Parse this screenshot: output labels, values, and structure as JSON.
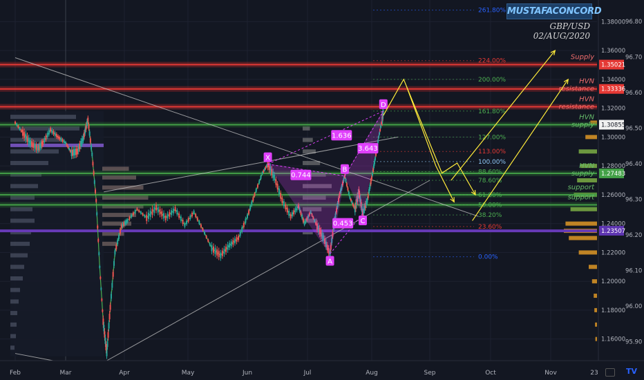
{
  "header": {
    "brand": "MUSTAFACONCORD",
    "symbol": "GBP/USD",
    "date": "02/AUG/2020"
  },
  "colors": {
    "background": "#131722",
    "price_line": "#4caf50",
    "candle_up": "#26a69a",
    "candle_down": "#ef5350",
    "pattern": "#e040fb",
    "projection": "#ffeb3b",
    "supply_band": "#c62828",
    "support_band": "#2e7d32",
    "pivot_line": "#673ab7"
  },
  "chart_data": {
    "type": "line",
    "symbol": "GBP/USD",
    "x_ticks": [
      "Feb",
      "Mar",
      "Apr",
      "May",
      "Jun",
      "Jul",
      "Aug",
      "Sep",
      "Oct",
      "Nov",
      "23"
    ],
    "y_axis_right": {
      "ticks": [
        "1.38000",
        "1.36000",
        "1.34000",
        "1.32000",
        "1.30000",
        "1.28000",
        "1.26000",
        "1.24000",
        "1.22000",
        "1.20000",
        "1.18000",
        "1.16000"
      ],
      "range": [
        1.145,
        1.395
      ]
    },
    "y_axis_secondary": {
      "ticks": [
        "96.80",
        "96.70",
        "96.60",
        "96.50",
        "96.40",
        "96.30",
        "96.20",
        "96.10",
        "96.00",
        "95.90"
      ]
    },
    "price_badges": [
      {
        "value": "1.35021",
        "price": 1.35021,
        "color": "#e53935"
      },
      {
        "value": "1.33336",
        "price": 1.33336,
        "color": "#e53935"
      },
      {
        "value": "1.30855",
        "price": 1.30855,
        "color": "#f0f0f0"
      },
      {
        "value": "1.27483",
        "price": 1.27483,
        "color": "#43a047"
      },
      {
        "value": "1.23507",
        "price": 1.23507,
        "color": "#5e35b1"
      }
    ],
    "zones": [
      {
        "label": "Supply",
        "price": 1.35021,
        "type": "supply"
      },
      {
        "label": "HVN resistance",
        "price": 1.33336,
        "type": "supply"
      },
      {
        "label": "HVN resistance",
        "price": 1.321,
        "type": "supply"
      },
      {
        "label": "HVN supply",
        "price": 1.30855,
        "type": "support"
      },
      {
        "label": "HVN supply",
        "price": 1.27483,
        "type": "support"
      },
      {
        "label": "support",
        "price": 1.26,
        "type": "support"
      },
      {
        "label": "support",
        "price": 1.253,
        "type": "support"
      }
    ],
    "fib_levels": [
      {
        "label": "261.80%",
        "price": 1.388
      },
      {
        "label": "224.00%",
        "price": 1.353
      },
      {
        "label": "200.00%",
        "price": 1.34
      },
      {
        "label": "161.80%",
        "price": 1.318
      },
      {
        "label": "127.00%",
        "price": 1.3
      },
      {
        "label": "113.00%",
        "price": 1.29
      },
      {
        "label": "100.00%",
        "price": 1.283
      },
      {
        "label": "88.60%",
        "price": 1.276
      },
      {
        "label": "78.60%",
        "price": 1.27
      },
      {
        "label": "61.80%",
        "price": 1.26
      },
      {
        "label": "50.00%",
        "price": 1.253
      },
      {
        "label": "38.20%",
        "price": 1.246
      },
      {
        "label": "23.60%",
        "price": 1.238
      },
      {
        "label": "0.00%",
        "price": 1.217
      }
    ],
    "harmonic_pattern": {
      "points": [
        {
          "label": "X",
          "month": 4.34,
          "price": 1.2812
        },
        {
          "label": "A",
          "month": 5.35,
          "price": 1.219
        },
        {
          "label": "B",
          "month": 5.58,
          "price": 1.273
        },
        {
          "label": "C",
          "month": 5.86,
          "price": 1.247
        },
        {
          "label": "D",
          "month": 6.2,
          "price": 1.318
        }
      ],
      "ratios": [
        {
          "label": "1.636",
          "month": 5.53,
          "price": 1.301
        },
        {
          "label": "3.643",
          "month": 5.94,
          "price": 1.292
        },
        {
          "label": "0.744",
          "month": 4.89,
          "price": 1.2735
        },
        {
          "label": "0.453",
          "month": 5.55,
          "price": 1.24
        }
      ]
    },
    "price_series": [
      {
        "month": 0.0,
        "price": 1.31
      },
      {
        "month": 0.15,
        "price": 1.303
      },
      {
        "month": 0.3,
        "price": 1.296
      },
      {
        "month": 0.45,
        "price": 1.292
      },
      {
        "month": 0.55,
        "price": 1.296
      },
      {
        "month": 0.7,
        "price": 1.305
      },
      {
        "month": 0.85,
        "price": 1.3
      },
      {
        "month": 1.0,
        "price": 1.296
      },
      {
        "month": 1.1,
        "price": 1.289
      },
      {
        "month": 1.2,
        "price": 1.29
      },
      {
        "month": 1.3,
        "price": 1.299
      },
      {
        "month": 1.38,
        "price": 1.312
      },
      {
        "month": 1.45,
        "price": 1.288
      },
      {
        "month": 1.52,
        "price": 1.256
      },
      {
        "month": 1.58,
        "price": 1.21
      },
      {
        "month": 1.64,
        "price": 1.172
      },
      {
        "month": 1.7,
        "price": 1.15
      },
      {
        "month": 1.76,
        "price": 1.182
      },
      {
        "month": 1.84,
        "price": 1.22
      },
      {
        "month": 1.95,
        "price": 1.238
      },
      {
        "month": 2.05,
        "price": 1.242
      },
      {
        "month": 2.2,
        "price": 1.25
      },
      {
        "month": 2.35,
        "price": 1.244
      },
      {
        "month": 2.5,
        "price": 1.251
      },
      {
        "month": 2.65,
        "price": 1.244
      },
      {
        "month": 2.8,
        "price": 1.25
      },
      {
        "month": 2.95,
        "price": 1.239
      },
      {
        "month": 3.1,
        "price": 1.248
      },
      {
        "month": 3.25,
        "price": 1.236
      },
      {
        "month": 3.4,
        "price": 1.223
      },
      {
        "month": 3.55,
        "price": 1.218
      },
      {
        "month": 3.7,
        "price": 1.225
      },
      {
        "month": 3.85,
        "price": 1.23
      },
      {
        "month": 4.0,
        "price": 1.245
      },
      {
        "month": 4.12,
        "price": 1.26
      },
      {
        "month": 4.25,
        "price": 1.275
      },
      {
        "month": 4.34,
        "price": 1.2812
      },
      {
        "month": 4.45,
        "price": 1.272
      },
      {
        "month": 4.58,
        "price": 1.256
      },
      {
        "month": 4.72,
        "price": 1.245
      },
      {
        "month": 4.85,
        "price": 1.252
      },
      {
        "month": 4.95,
        "price": 1.24
      },
      {
        "month": 5.05,
        "price": 1.248
      },
      {
        "month": 5.15,
        "price": 1.238
      },
      {
        "month": 5.25,
        "price": 1.23
      },
      {
        "month": 5.35,
        "price": 1.219
      },
      {
        "month": 5.42,
        "price": 1.242
      },
      {
        "month": 5.5,
        "price": 1.26
      },
      {
        "month": 5.58,
        "price": 1.273
      },
      {
        "month": 5.66,
        "price": 1.258
      },
      {
        "month": 5.74,
        "price": 1.25
      },
      {
        "month": 5.8,
        "price": 1.262
      },
      {
        "month": 5.86,
        "price": 1.247
      },
      {
        "month": 5.93,
        "price": 1.256
      },
      {
        "month": 6.0,
        "price": 1.272
      },
      {
        "month": 6.06,
        "price": 1.285
      },
      {
        "month": 6.12,
        "price": 1.3
      },
      {
        "month": 6.18,
        "price": 1.312
      },
      {
        "month": 6.2,
        "price": 1.318
      }
    ],
    "projections": [
      [
        {
          "month": 6.2,
          "price": 1.315
        },
        {
          "month": 6.55,
          "price": 1.34
        },
        {
          "month": 7.2,
          "price": 1.275
        },
        {
          "month": 7.45,
          "price": 1.282
        },
        {
          "month": 7.75,
          "price": 1.26
        }
      ],
      [
        {
          "month": 6.6,
          "price": 1.335
        },
        {
          "month": 7.1,
          "price": 1.28
        },
        {
          "month": 7.4,
          "price": 1.255
        }
      ],
      [
        {
          "month": 7.35,
          "price": 1.27
        },
        {
          "month": 9.1,
          "price": 1.36
        }
      ],
      [
        {
          "month": 7.7,
          "price": 1.242
        },
        {
          "month": 9.4,
          "price": 1.34
        }
      ]
    ],
    "trendlines": [
      [
        {
          "month": 0.0,
          "price": 1.355
        },
        {
          "month": 7.8,
          "price": 1.245
        }
      ],
      [
        {
          "month": 1.7,
          "price": 1.145
        },
        {
          "month": 7.0,
          "price": 1.27
        }
      ],
      [
        {
          "month": 1.65,
          "price": 1.262
        },
        {
          "month": 6.45,
          "price": 1.3
        }
      ],
      [
        {
          "month": 0.0,
          "price": 1.15
        },
        {
          "month": 0.75,
          "price": 1.145
        }
      ]
    ],
    "volume_profile_left": [
      {
        "price": 1.314,
        "size": 0.95
      },
      {
        "price": 1.306,
        "size": 1.0
      },
      {
        "price": 1.298,
        "size": 0.75
      },
      {
        "price": 1.29,
        "size": 0.7
      },
      {
        "price": 1.282,
        "size": 0.55
      },
      {
        "price": 1.274,
        "size": 0.45
      },
      {
        "price": 1.266,
        "size": 0.4
      },
      {
        "price": 1.258,
        "size": 0.35
      },
      {
        "price": 1.25,
        "size": 0.32
      },
      {
        "price": 1.242,
        "size": 0.35
      },
      {
        "price": 1.234,
        "size": 0.3
      },
      {
        "price": 1.226,
        "size": 0.28
      },
      {
        "price": 1.218,
        "size": 0.25
      },
      {
        "price": 1.21,
        "size": 0.2
      },
      {
        "price": 1.202,
        "size": 0.18
      },
      {
        "price": 1.194,
        "size": 0.14
      },
      {
        "price": 1.186,
        "size": 0.12
      },
      {
        "price": 1.178,
        "size": 0.1
      },
      {
        "price": 1.17,
        "size": 0.09
      },
      {
        "price": 1.162,
        "size": 0.08
      },
      {
        "price": 1.154,
        "size": 0.06
      }
    ],
    "volume_profile_right": [
      {
        "price": 1.31,
        "size": 0.2
      },
      {
        "price": 1.3,
        "size": 0.35
      },
      {
        "price": 1.29,
        "size": 0.55
      },
      {
        "price": 1.28,
        "size": 0.5
      },
      {
        "price": 1.27,
        "size": 0.6
      },
      {
        "price": 1.26,
        "size": 0.7
      },
      {
        "price": 1.25,
        "size": 0.8
      },
      {
        "price": 1.24,
        "size": 0.95
      },
      {
        "price": 1.235,
        "size": 1.0
      },
      {
        "price": 1.23,
        "size": 0.85
      },
      {
        "price": 1.22,
        "size": 0.55
      },
      {
        "price": 1.21,
        "size": 0.25
      },
      {
        "price": 1.2,
        "size": 0.15
      },
      {
        "price": 1.19,
        "size": 0.1
      },
      {
        "price": 1.18,
        "size": 0.08
      },
      {
        "price": 1.17,
        "size": 0.06
      },
      {
        "price": 1.16,
        "size": 0.05
      }
    ],
    "grid": true,
    "legend": "none"
  }
}
